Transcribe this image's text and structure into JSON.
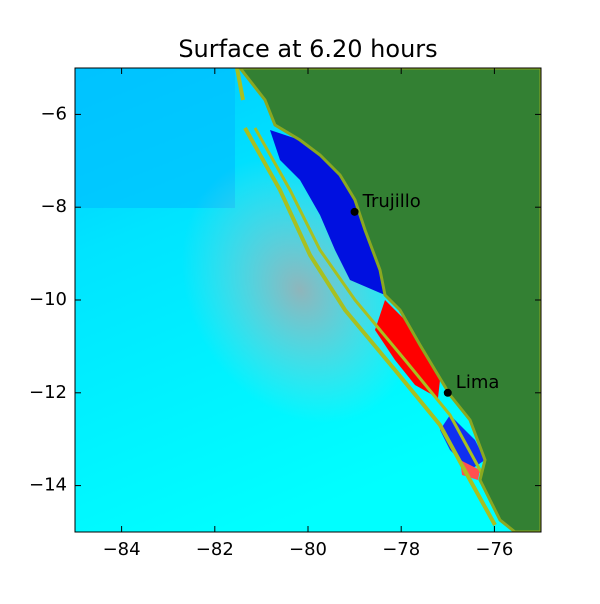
{
  "chart_data": {
    "type": "scatter",
    "title": "Surface at 6.20 hours",
    "series": [
      {
        "x": [
          -79.0,
          -77.0
        ],
        "values": [
          -8.1,
          -12.0
        ],
        "labels": [
          "Trujillo",
          "Lima"
        ],
        "color": "#000000"
      }
    ],
    "xlim": [
      -85,
      -75
    ],
    "xticks": [
      {
        "value": -84,
        "label": "−84"
      },
      {
        "value": -82,
        "label": "−82"
      },
      {
        "value": -80,
        "label": "−80"
      },
      {
        "value": -78,
        "label": "−78"
      },
      {
        "value": -76,
        "label": "−76"
      }
    ],
    "ylim": [
      -15,
      -5
    ],
    "yticks": [
      {
        "value": -6,
        "label": "−6"
      },
      {
        "value": -8,
        "label": "−8"
      },
      {
        "value": -10,
        "label": "−10"
      },
      {
        "value": -12,
        "label": "−12"
      },
      {
        "value": -14,
        "label": "−14"
      }
    ]
  }
}
